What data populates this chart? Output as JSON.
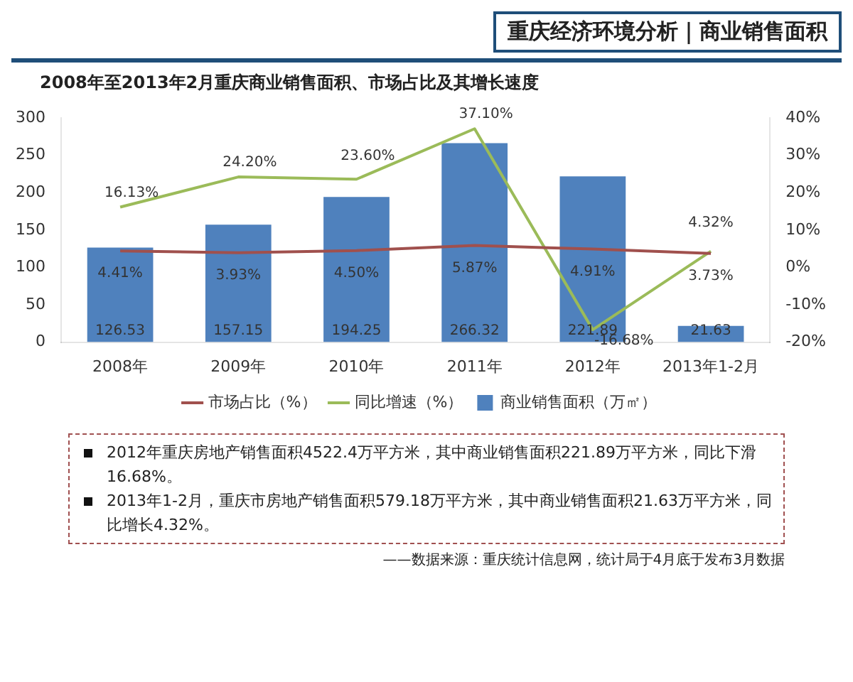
{
  "chart_data": {
    "type": "bar",
    "title": "重庆经济环境分析｜商业销售面积",
    "subtitle": "2008年至2013年2月重庆商业销售面积、市场占比及其增长速度",
    "categories": [
      "2008年",
      "2009年",
      "2010年",
      "2011年",
      "2012年",
      "2013年1-2月"
    ],
    "series": [
      {
        "name": "商业销售面积（万㎡）",
        "color": "#4f81bd",
        "values": [
          126.53,
          157.15,
          194.25,
          266.32,
          221.89,
          21.63
        ],
        "value_labels": [
          "126.53",
          "157.15",
          "194.25",
          "266.32",
          "221.89",
          "21.63"
        ]
      },
      {
        "name": "市场占比（%）",
        "type": "line",
        "axis": "y2",
        "color": "#a0504d",
        "values": [
          4.41,
          3.93,
          4.5,
          5.87,
          4.91,
          3.73
        ],
        "value_labels": [
          "4.41%",
          "3.93%",
          "4.50%",
          "5.87%",
          "4.91%",
          "3.73%"
        ]
      },
      {
        "name": "同比增速（%）",
        "type": "line",
        "axis": "y2",
        "color": "#9bbb59",
        "values": [
          16.13,
          24.2,
          23.6,
          37.1,
          -16.68,
          4.32
        ],
        "value_labels": [
          "16.13%",
          "24.20%",
          "23.60%",
          "37.10%",
          "-16.68%",
          "4.32%"
        ]
      }
    ],
    "ylim": [
      0,
      300
    ],
    "yticks": [
      0,
      50,
      100,
      150,
      200,
      250,
      300
    ],
    "y2lim": [
      -20,
      40
    ],
    "y2ticks": [
      {
        "value": -20,
        "label": "-20%"
      },
      {
        "value": -10,
        "label": "-10%"
      },
      {
        "value": 0,
        "label": "0%"
      },
      {
        "value": 10,
        "label": "10%"
      },
      {
        "value": 20,
        "label": "20%"
      },
      {
        "value": 30,
        "label": "30%"
      },
      {
        "value": 40,
        "label": "40%"
      }
    ],
    "grid": false,
    "legend": "bottom",
    "marker": "none",
    "line_style": "solid",
    "annotations": [
      "2012年重庆房地产销售面积4522.4万平方米，其中商业销售面积221.89万平方米，同比下滑16.68%。",
      "2013年1-2月，重庆市房地产销售面积579.18万平方米，其中商业销售面积21.63万平方米，同比增长4.32%。",
      "——数据来源：重庆统计信息网，统计局于4月底于发布3月数据"
    ]
  }
}
